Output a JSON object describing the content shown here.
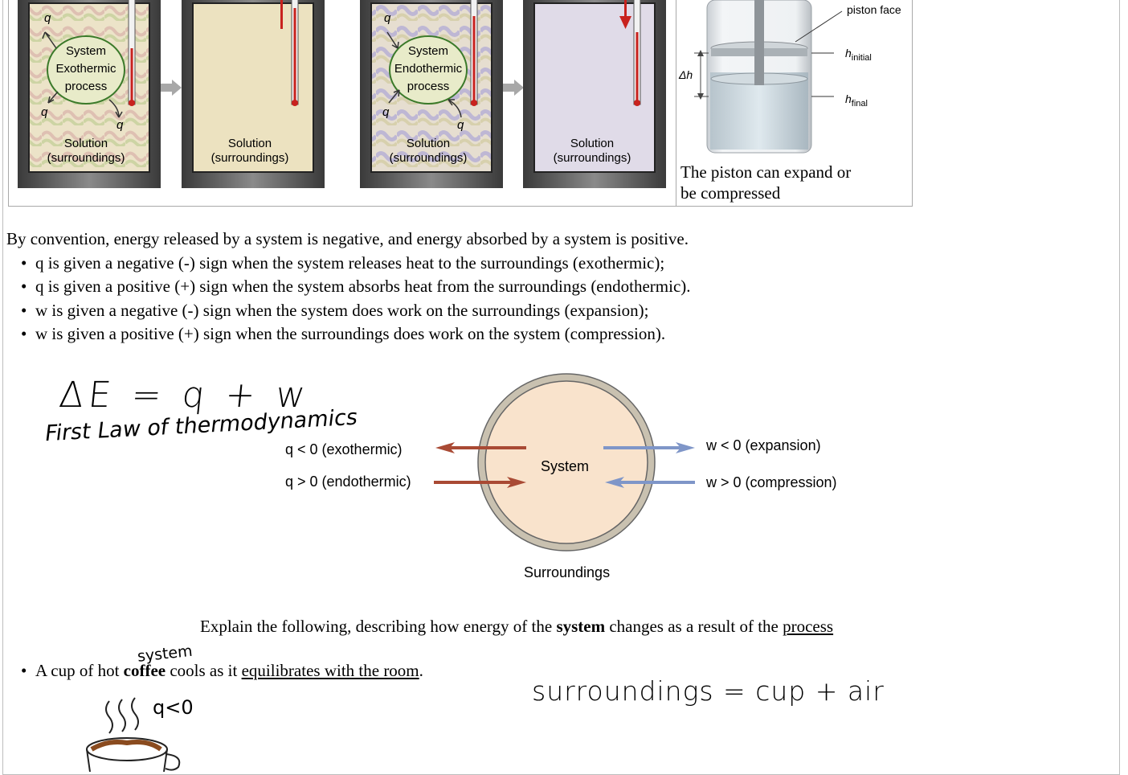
{
  "figure": {
    "panels": [
      {
        "top_label": "System",
        "mid_label": "Exothermic",
        "bottom_label": "process",
        "q_labels": [
          "q",
          "q",
          "q"
        ],
        "solution": "Solution",
        "surroundings": "(surroundings)"
      },
      {
        "solution": "Solution",
        "surroundings": "(surroundings)"
      },
      {
        "top_label": "System",
        "mid_label": "Endothermic",
        "bottom_label": "process",
        "q_labels": [
          "q",
          "q",
          "q"
        ],
        "solution": "Solution",
        "surroundings": "(surroundings)"
      },
      {
        "solution": "Solution",
        "surroundings": "(surroundings)"
      }
    ],
    "piston": {
      "face_label": "piston face",
      "h_initial_base": "h",
      "h_initial_sub": "initial",
      "h_final_base": "h",
      "h_final_sub": "final",
      "delta_h": "Δh",
      "caption_line1": "The piston can expand or",
      "caption_line2": "be compressed"
    }
  },
  "convention": {
    "intro": "By convention, energy released by a system is negative, and energy absorbed by a system is positive.",
    "bullets": [
      "q is given a negative (-) sign when the system releases heat to the surroundings (exothermic);",
      "q is given a positive (+) sign when the system absorbs heat from the surroundings (endothermic).",
      "w is given a negative (-) sign when the system does work on the surroundings (expansion);",
      "w is given a positive (+) sign when the surroundings does work on the system (compression)."
    ]
  },
  "handwriting": {
    "equation": "ΔE = q + w",
    "first_law": "First Law of thermodynamics",
    "system_note": "system",
    "surroundings_note": "surroundings = cup + air",
    "heat_note": "q<0"
  },
  "diagram": {
    "system": "System",
    "surroundings": "Surroundings",
    "q_neg": "q < 0 (exothermic)",
    "q_pos": "q > 0 (endothermic)",
    "w_neg": "w < 0 (expansion)",
    "w_pos": "w > 0 (compression)",
    "colors": {
      "heat_arrow": "#a94a34",
      "work_arrow": "#7f96c8",
      "system_fill": "#f9e3cc",
      "ring": "#c9c1b0"
    }
  },
  "explain": {
    "pre": "Explain the following, describing how energy of the",
    "bold": "system",
    "mid": "changes as a result of the",
    "underlined": "process"
  },
  "item1": {
    "pre": "A cup of hot",
    "bold": "coffee",
    "mid": "cools as it",
    "underlined": "equilibrates with the room",
    "post": "."
  }
}
